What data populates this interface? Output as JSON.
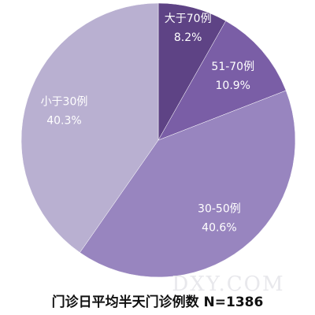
{
  "chart_data": {
    "type": "pie",
    "title": "门诊日平均半天门诊例数 N=1386",
    "watermark": "DXY.COM",
    "categories": [
      "大于70例",
      "51-70例",
      "30-50例",
      "小于30例"
    ],
    "values": [
      8.2,
      10.9,
      40.6,
      40.3
    ],
    "value_labels": [
      "8.2%",
      "10.9%",
      "40.6%",
      "40.3%"
    ],
    "colors": [
      "#5e4385",
      "#7a5ea6",
      "#9885bf",
      "#b9b0d1"
    ]
  }
}
